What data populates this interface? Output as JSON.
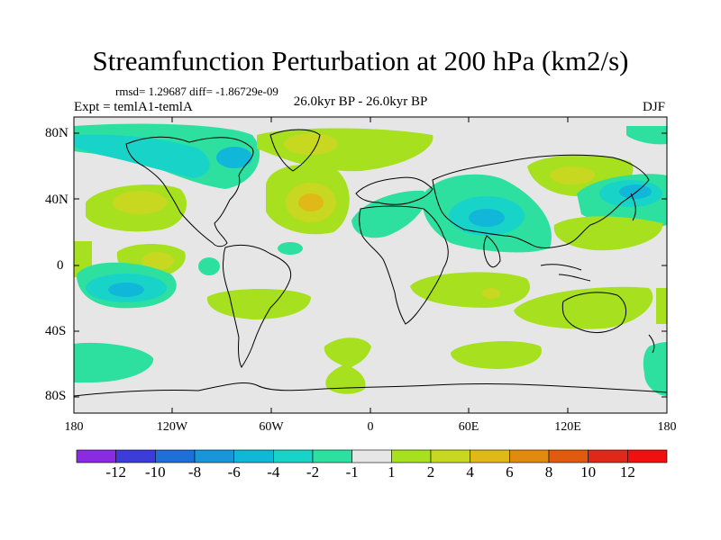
{
  "title": "Streamfunction Perturbation at 200 hPa (km2/s)",
  "stats_line": "rmsd= 1.29687 diff= -1.86729e-09",
  "experiment": "Expt = temlA1-temlA",
  "period": "26.0kyr BP - 26.0kyr BP",
  "season": "DJF",
  "axes": {
    "y_labels": [
      "80N",
      "40N",
      "0",
      "40S",
      "80S"
    ],
    "x_labels": [
      "180",
      "120W",
      "60W",
      "0",
      "60E",
      "120E",
      "180"
    ]
  },
  "colorbar": {
    "labels": [
      "-12",
      "-10",
      "-8",
      "-6",
      "-4",
      "-2",
      "-1",
      "1",
      "2",
      "4",
      "6",
      "8",
      "10",
      "12"
    ],
    "colors": [
      "#8a2be2",
      "#3c3cd8",
      "#1e6fd6",
      "#1a95d8",
      "#10b7d8",
      "#18d4c8",
      "#2ee0a0",
      "#e6e6e6",
      "#a6e01e",
      "#c8d820",
      "#e0b818",
      "#e08a10",
      "#e05a10",
      "#e02818",
      "#f01010"
    ]
  },
  "colors": {
    "background_field": "#e6e6e6",
    "coastline": "#000000"
  }
}
